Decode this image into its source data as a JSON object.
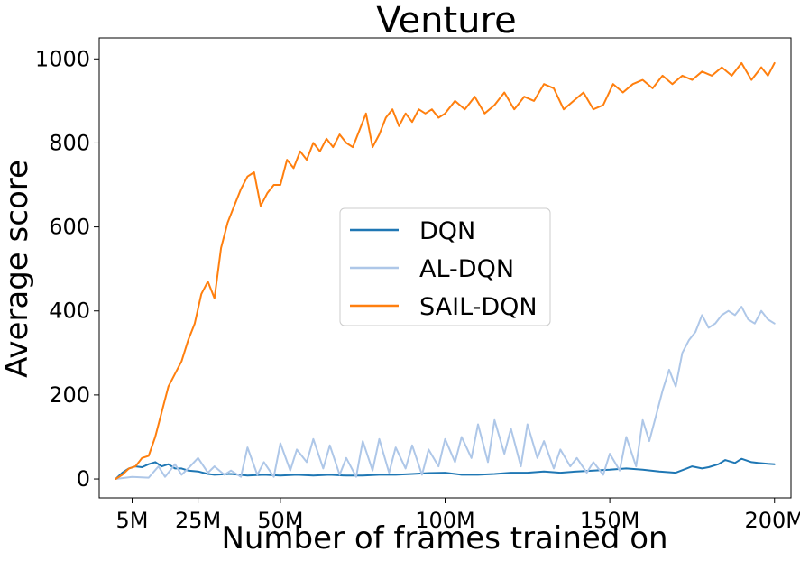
{
  "chart_data": {
    "type": "line",
    "title": "Venture",
    "xlabel": "Number of frames trained on",
    "ylabel": "Average score",
    "xlim": [
      -5,
      205
    ],
    "ylim": [
      -45,
      1050
    ],
    "xticks": [
      5,
      25,
      50,
      100,
      150,
      200
    ],
    "xtick_labels": [
      "5M",
      "25M",
      "50M",
      "100M",
      "150M",
      "200M"
    ],
    "yticks": [
      0,
      200,
      400,
      600,
      800,
      1000
    ],
    "ytick_labels": [
      "0",
      "200",
      "400",
      "600",
      "800",
      "1000"
    ],
    "grid": false,
    "legend_position": "center",
    "series": [
      {
        "name": "DQN",
        "color": "#1f77b4",
        "x": [
          0,
          2,
          4,
          6,
          8,
          10,
          12,
          14,
          16,
          18,
          20,
          22,
          25,
          28,
          30,
          35,
          40,
          45,
          50,
          55,
          60,
          65,
          70,
          75,
          80,
          85,
          90,
          95,
          100,
          105,
          110,
          115,
          120,
          125,
          130,
          135,
          140,
          145,
          150,
          155,
          160,
          165,
          170,
          175,
          178,
          180,
          183,
          185,
          188,
          190,
          193,
          195,
          198,
          200
        ],
        "y": [
          0,
          15,
          25,
          30,
          28,
          35,
          40,
          30,
          35,
          25,
          25,
          20,
          18,
          12,
          10,
          12,
          8,
          10,
          8,
          10,
          8,
          10,
          8,
          8,
          10,
          10,
          12,
          14,
          15,
          10,
          10,
          12,
          15,
          15,
          18,
          15,
          18,
          20,
          22,
          25,
          22,
          18,
          15,
          30,
          25,
          28,
          35,
          45,
          38,
          48,
          40,
          38,
          36,
          35
        ]
      },
      {
        "name": "AL-DQN",
        "color": "#aec7e8",
        "x": [
          0,
          5,
          10,
          13,
          15,
          18,
          20,
          22,
          25,
          28,
          30,
          33,
          35,
          38,
          40,
          43,
          45,
          48,
          50,
          53,
          55,
          58,
          60,
          63,
          65,
          68,
          70,
          73,
          75,
          78,
          80,
          83,
          85,
          88,
          90,
          93,
          95,
          98,
          100,
          103,
          105,
          108,
          110,
          113,
          115,
          118,
          120,
          123,
          125,
          128,
          130,
          133,
          135,
          138,
          140,
          143,
          145,
          148,
          150,
          153,
          155,
          158,
          160,
          162,
          164,
          166,
          168,
          170,
          172,
          174,
          176,
          178,
          180,
          182,
          184,
          186,
          188,
          190,
          192,
          194,
          196,
          198,
          200
        ],
        "y": [
          0,
          5,
          3,
          30,
          5,
          35,
          10,
          25,
          50,
          15,
          30,
          10,
          20,
          5,
          75,
          10,
          40,
          5,
          85,
          20,
          70,
          40,
          95,
          25,
          80,
          10,
          50,
          5,
          90,
          20,
          95,
          15,
          75,
          25,
          80,
          10,
          70,
          30,
          95,
          40,
          100,
          50,
          130,
          40,
          140,
          60,
          120,
          30,
          130,
          50,
          90,
          25,
          70,
          30,
          50,
          15,
          40,
          10,
          60,
          20,
          100,
          30,
          140,
          90,
          150,
          210,
          260,
          220,
          300,
          330,
          350,
          390,
          360,
          370,
          390,
          400,
          390,
          410,
          380,
          370,
          400,
          380,
          370
        ]
      },
      {
        "name": "SAIL-DQN",
        "color": "#ff7f0e",
        "x": [
          0,
          2,
          4,
          6,
          8,
          10,
          12,
          14,
          16,
          18,
          20,
          22,
          24,
          26,
          28,
          30,
          32,
          34,
          36,
          38,
          40,
          42,
          44,
          46,
          48,
          50,
          52,
          54,
          56,
          58,
          60,
          62,
          64,
          66,
          68,
          70,
          72,
          74,
          76,
          78,
          80,
          82,
          84,
          86,
          88,
          90,
          92,
          94,
          96,
          98,
          100,
          103,
          106,
          109,
          112,
          115,
          118,
          121,
          124,
          127,
          130,
          133,
          136,
          139,
          142,
          145,
          148,
          151,
          154,
          157,
          160,
          163,
          166,
          169,
          172,
          175,
          178,
          181,
          184,
          187,
          190,
          193,
          196,
          198,
          200
        ],
        "y": [
          0,
          10,
          25,
          30,
          50,
          55,
          100,
          160,
          220,
          250,
          280,
          330,
          370,
          440,
          470,
          430,
          550,
          610,
          650,
          690,
          720,
          730,
          650,
          680,
          700,
          700,
          760,
          740,
          780,
          760,
          800,
          780,
          810,
          790,
          820,
          800,
          790,
          830,
          870,
          790,
          820,
          860,
          880,
          840,
          870,
          850,
          880,
          870,
          880,
          860,
          870,
          900,
          880,
          910,
          870,
          890,
          920,
          880,
          910,
          900,
          940,
          930,
          880,
          900,
          920,
          880,
          890,
          940,
          920,
          940,
          950,
          930,
          960,
          940,
          960,
          950,
          970,
          960,
          980,
          960,
          990,
          950,
          980,
          960,
          990
        ]
      }
    ]
  }
}
